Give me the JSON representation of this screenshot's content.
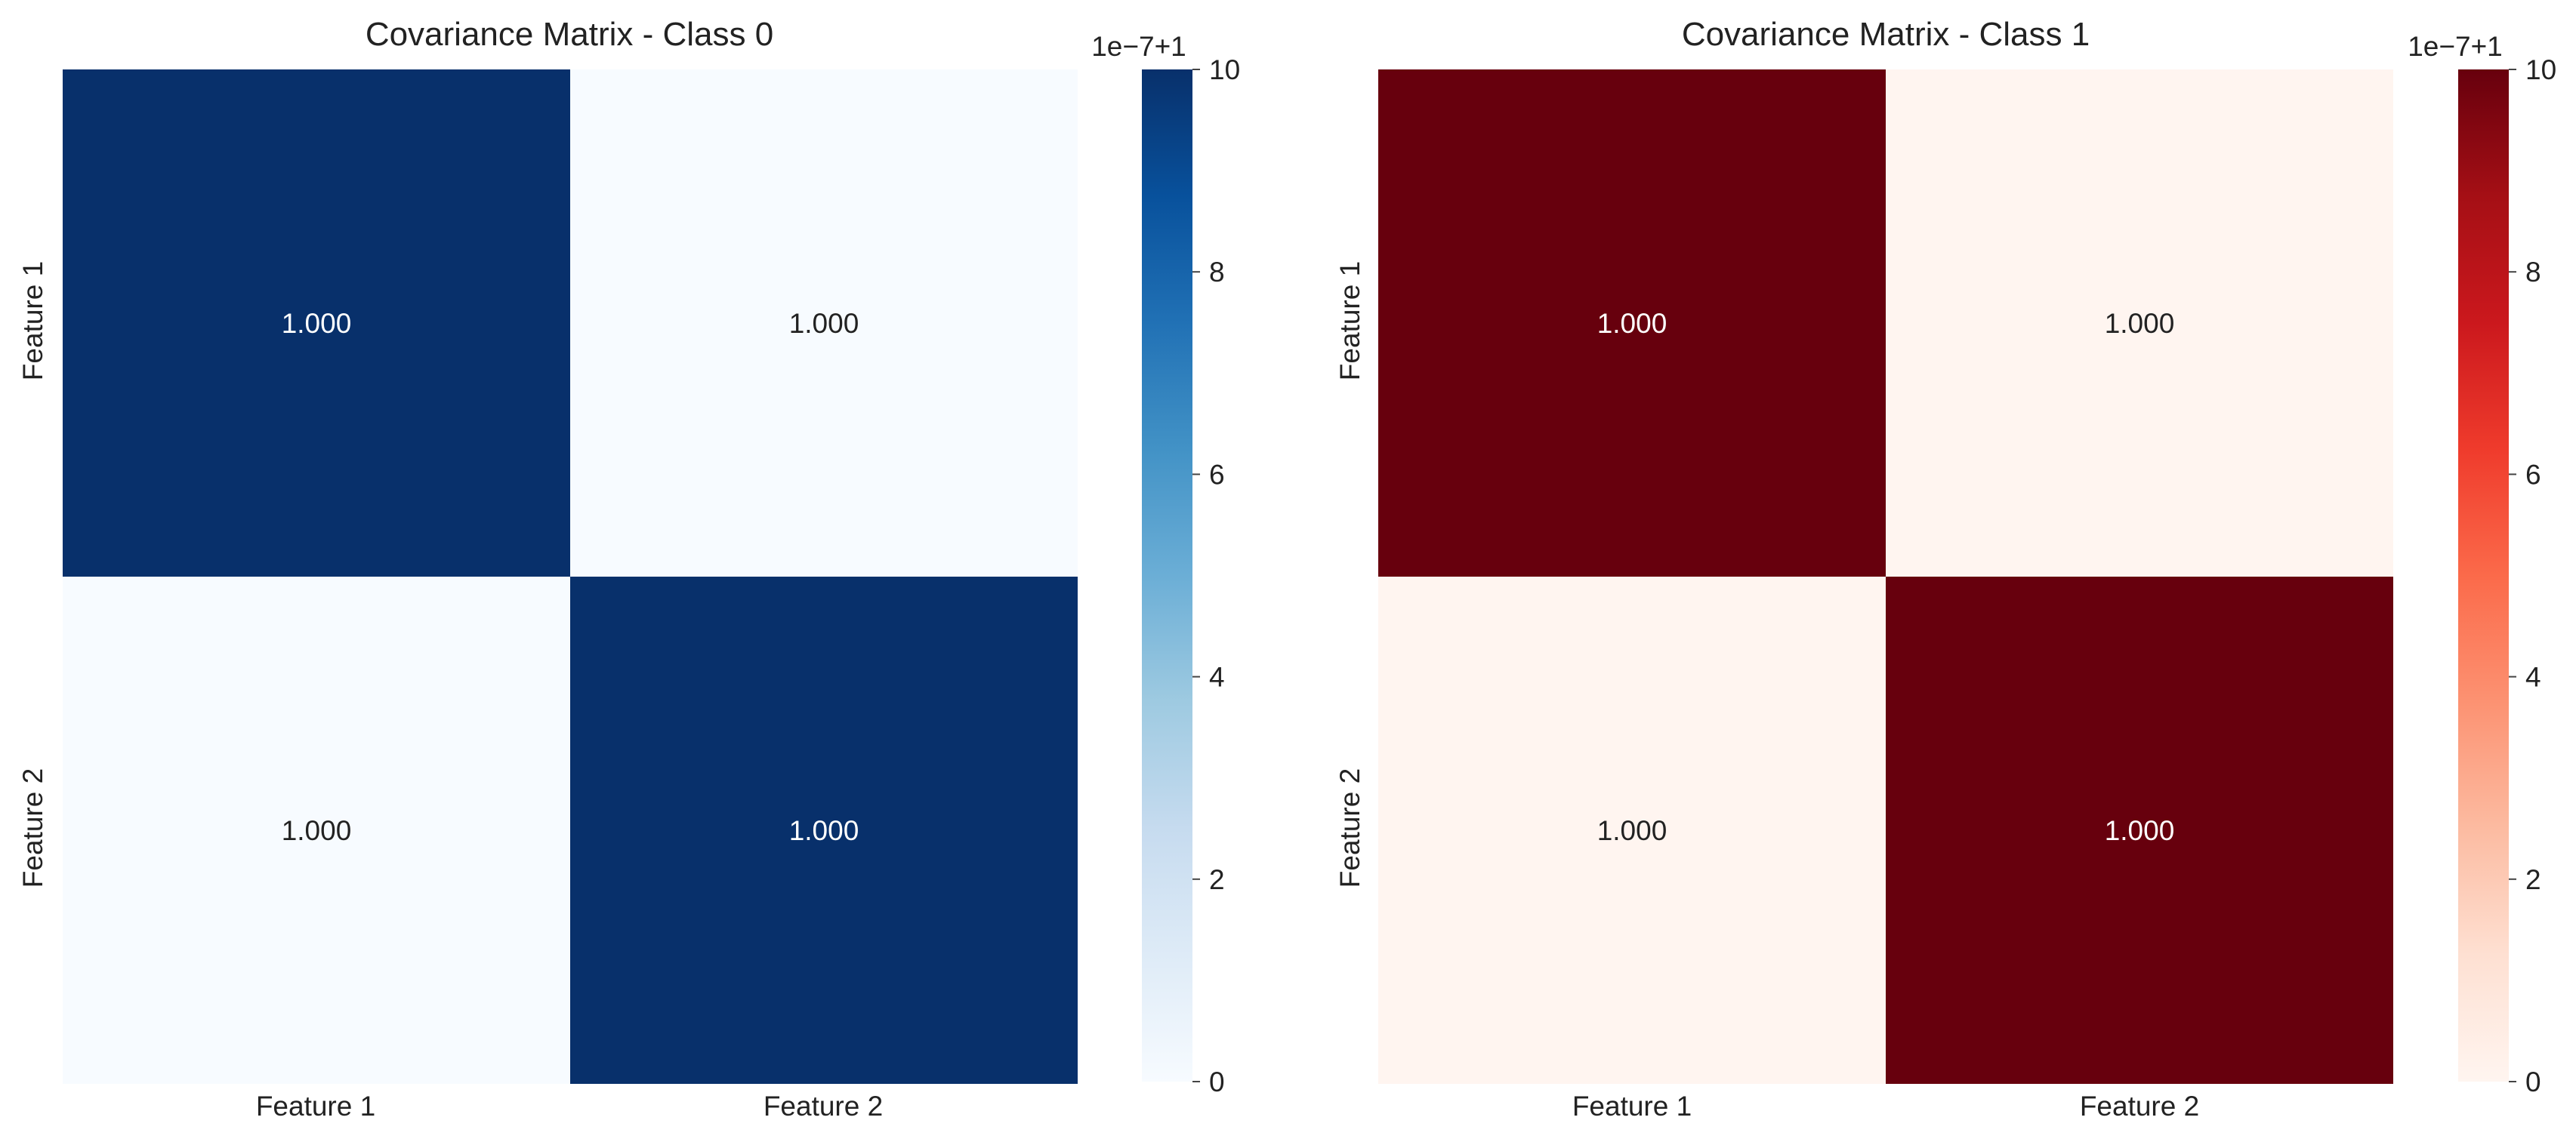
{
  "chart_data": [
    {
      "type": "heatmap",
      "title": "Covariance Matrix - Class 0",
      "x_categories": [
        "Feature 1",
        "Feature 2"
      ],
      "y_categories": [
        "Feature 1",
        "Feature 2"
      ],
      "values": [
        [
          1.0000001,
          1.0
        ],
        [
          1.0,
          1.0000001
        ]
      ],
      "annotations": [
        [
          "1.000",
          "1.000"
        ],
        [
          "1.000",
          "1.000"
        ]
      ],
      "colorscale": "Blues",
      "color_low": "#f7fbff",
      "color_high": "#08306b",
      "colorbar": {
        "offset_label": "1e−7+1",
        "ticks": [
          0,
          2,
          4,
          6,
          8,
          10
        ],
        "tick_labels": [
          "0",
          "2",
          "4",
          "6",
          "8",
          "10"
        ],
        "range": [
          0,
          10
        ]
      }
    },
    {
      "type": "heatmap",
      "title": "Covariance Matrix - Class 1",
      "x_categories": [
        "Feature 1",
        "Feature 2"
      ],
      "y_categories": [
        "Feature 1",
        "Feature 2"
      ],
      "values": [
        [
          1.0000001,
          1.0
        ],
        [
          1.0,
          1.0000001
        ]
      ],
      "annotations": [
        [
          "1.000",
          "1.000"
        ],
        [
          "1.000",
          "1.000"
        ]
      ],
      "colorscale": "Reds",
      "color_low": "#fff5f0",
      "color_high": "#67000d",
      "colorbar": {
        "offset_label": "1e−7+1",
        "ticks": [
          0,
          2,
          4,
          6,
          8,
          10
        ],
        "tick_labels": [
          "0",
          "2",
          "4",
          "6",
          "8",
          "10"
        ],
        "range": [
          0,
          10
        ]
      }
    }
  ]
}
